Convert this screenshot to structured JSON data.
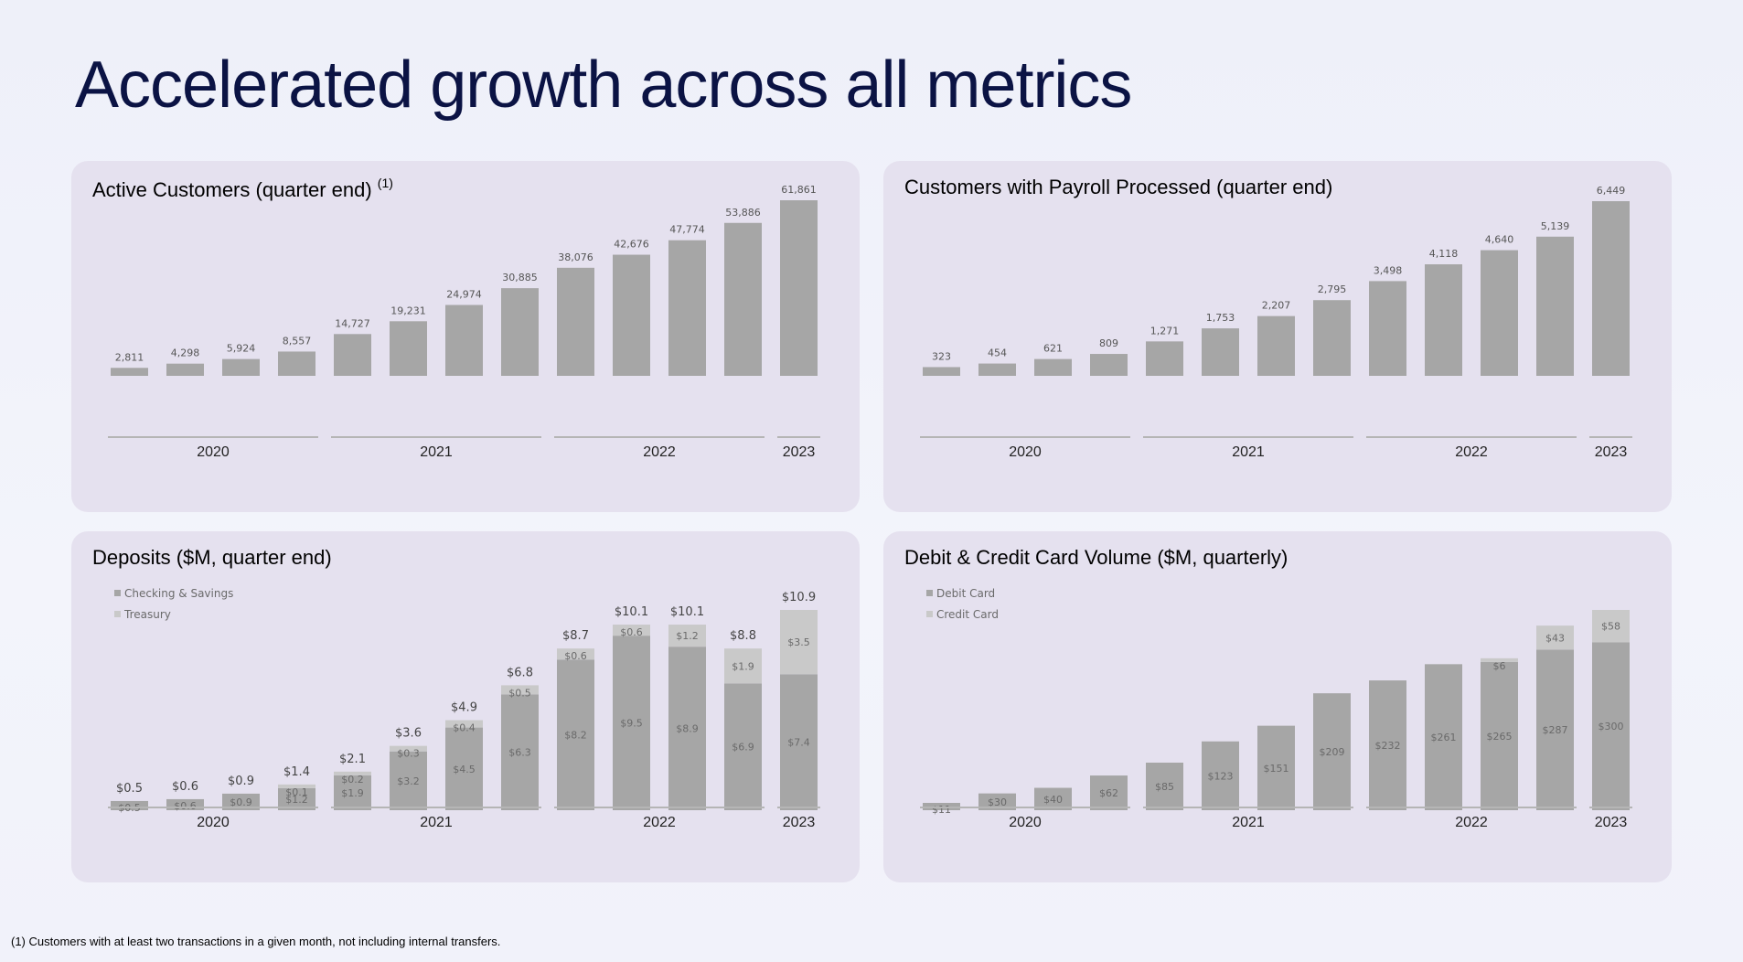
{
  "page": {
    "title": "Accelerated growth across all metrics",
    "footnote": "(1) Customers with at least two transactions in a given month, not including internal transfers."
  },
  "panels": {
    "active": {
      "title": "Active Customers (quarter end)",
      "note": "(1)"
    },
    "payroll": {
      "title": "Customers with Payroll Processed (quarter end)"
    },
    "deposits": {
      "title": "Deposits ($M, quarter end)"
    },
    "cards": {
      "title": "Debit & Credit Card Volume ($M, quarterly)"
    }
  },
  "colors": {
    "primary_bar": "#a6a6a6",
    "secondary_bar": "#c9c9c9",
    "axis": "#b5b5b5",
    "panel_bg": "#e5e1ef"
  },
  "chart_data": [
    {
      "id": "active",
      "type": "bar",
      "title": "Active Customers (quarter end)",
      "categories": [
        "Q1 2020",
        "Q2 2020",
        "Q3 2020",
        "Q4 2020",
        "Q1 2021",
        "Q2 2021",
        "Q3 2021",
        "Q4 2021",
        "Q1 2022",
        "Q2 2022",
        "Q3 2022",
        "Q4 2022",
        "Q1 2023"
      ],
      "year_groups": [
        {
          "label": "2020",
          "count": 4
        },
        {
          "label": "2021",
          "count": 4
        },
        {
          "label": "2022",
          "count": 4
        },
        {
          "label": "2023",
          "count": 1
        }
      ],
      "series": [
        {
          "values": [
            2811,
            4298,
            5924,
            8557,
            14727,
            19231,
            24974,
            30885,
            38076,
            42676,
            47774,
            53886,
            61861
          ]
        }
      ],
      "labels": [
        "2,811",
        "4,298",
        "5,924",
        "8,557",
        "14,727",
        "19,231",
        "24,974",
        "30,885",
        "38,076",
        "42,676",
        "47,774",
        "53,886",
        "61,861"
      ],
      "ylim": [
        0,
        61861
      ]
    },
    {
      "id": "payroll",
      "type": "bar",
      "title": "Customers with Payroll Processed (quarter end)",
      "categories": [
        "Q1 2020",
        "Q2 2020",
        "Q3 2020",
        "Q4 2020",
        "Q1 2021",
        "Q2 2021",
        "Q3 2021",
        "Q4 2021",
        "Q1 2022",
        "Q2 2022",
        "Q3 2022",
        "Q4 2022",
        "Q1 2023"
      ],
      "year_groups": [
        {
          "label": "2020",
          "count": 4
        },
        {
          "label": "2021",
          "count": 4
        },
        {
          "label": "2022",
          "count": 4
        },
        {
          "label": "2023",
          "count": 1
        }
      ],
      "series": [
        {
          "values": [
            323,
            454,
            621,
            809,
            1271,
            1753,
            2207,
            2795,
            3498,
            4118,
            4640,
            5139,
            6449
          ]
        }
      ],
      "labels": [
        "323",
        "454",
        "621",
        "809",
        "1,271",
        "1,753",
        "2,207",
        "2,795",
        "3,498",
        "4,118",
        "4,640",
        "5,139",
        "6,449"
      ],
      "ylim": [
        0,
        6449
      ]
    },
    {
      "id": "deposits",
      "type": "bar",
      "stacked": true,
      "title": "Deposits ($M, quarter end)",
      "legend": [
        "Checking & Savings",
        "Treasury"
      ],
      "legend_position": "top-left",
      "categories": [
        "Q1 2020",
        "Q2 2020",
        "Q3 2020",
        "Q4 2020",
        "Q1 2021",
        "Q2 2021",
        "Q3 2021",
        "Q4 2021",
        "Q1 2022",
        "Q2 2022",
        "Q3 2022",
        "Q4 2022",
        "Q1 2023"
      ],
      "year_groups": [
        {
          "label": "2020",
          "count": 4
        },
        {
          "label": "2021",
          "count": 4
        },
        {
          "label": "2022",
          "count": 4
        },
        {
          "label": "2023",
          "count": 1
        }
      ],
      "series": [
        {
          "name": "Checking & Savings",
          "values": [
            0.5,
            0.6,
            0.9,
            1.2,
            1.9,
            3.2,
            4.5,
            6.3,
            8.2,
            9.5,
            8.9,
            6.9,
            7.4
          ],
          "labels": [
            "$0.5",
            "$0.6",
            "$0.9",
            "$1.2",
            "$1.9",
            "$3.2",
            "$4.5",
            "$6.3",
            "$8.2",
            "$9.5",
            "$8.9",
            "$6.9",
            "$7.4"
          ]
        },
        {
          "name": "Treasury",
          "values": [
            0,
            0,
            0,
            0.1,
            0.2,
            0.3,
            0.4,
            0.5,
            0.6,
            0.6,
            1.2,
            1.9,
            3.5
          ],
          "labels": [
            "",
            "",
            "",
            "$0.1",
            "$0.2",
            "$0.3",
            "$0.4",
            "$0.5",
            "$0.6",
            "$0.6",
            "$1.2",
            "$1.9",
            "$3.5"
          ]
        }
      ],
      "totals": [
        0.5,
        0.6,
        0.9,
        1.4,
        2.1,
        3.6,
        4.9,
        6.8,
        8.7,
        10.1,
        10.1,
        8.8,
        10.9
      ],
      "total_labels": [
        "$0.5",
        "$0.6",
        "$0.9",
        "$1.4",
        "$2.1",
        "$3.6",
        "$4.9",
        "$6.8",
        "$8.7",
        "$10.1",
        "$10.1",
        "$8.8",
        "$10.9"
      ],
      "ylim": [
        0,
        10.9
      ]
    },
    {
      "id": "cards",
      "type": "bar",
      "stacked": true,
      "title": "Debit & Credit Card Volume ($M, quarterly)",
      "legend": [
        "Debit Card",
        "Credit Card"
      ],
      "legend_position": "top-left",
      "categories": [
        "Q1 2020",
        "Q2 2020",
        "Q3 2020",
        "Q4 2020",
        "Q1 2021",
        "Q2 2021",
        "Q3 2021",
        "Q4 2021",
        "Q1 2022",
        "Q2 2022",
        "Q3 2022",
        "Q4 2022",
        "Q1 2023"
      ],
      "year_groups": [
        {
          "label": "2020",
          "count": 4
        },
        {
          "label": "2021",
          "count": 4
        },
        {
          "label": "2022",
          "count": 4
        },
        {
          "label": "2023",
          "count": 1
        }
      ],
      "series": [
        {
          "name": "Debit Card",
          "values": [
            11,
            30,
            40,
            62,
            85,
            123,
            151,
            209,
            232,
            261,
            265,
            287,
            300
          ],
          "labels": [
            "$11",
            "$30",
            "$40",
            "$62",
            "$85",
            "$123",
            "$151",
            "$209",
            "$232",
            "$261",
            "$265",
            "$287",
            "$300"
          ]
        },
        {
          "name": "Credit Card",
          "values": [
            0,
            0,
            0,
            0,
            0,
            0,
            0,
            0,
            0,
            0,
            6,
            43,
            58
          ],
          "labels": [
            "",
            "",
            "",
            "",
            "",
            "",
            "",
            "",
            "",
            "",
            "$6",
            "$43",
            "$58"
          ]
        }
      ],
      "ylim": [
        0,
        358
      ]
    }
  ]
}
